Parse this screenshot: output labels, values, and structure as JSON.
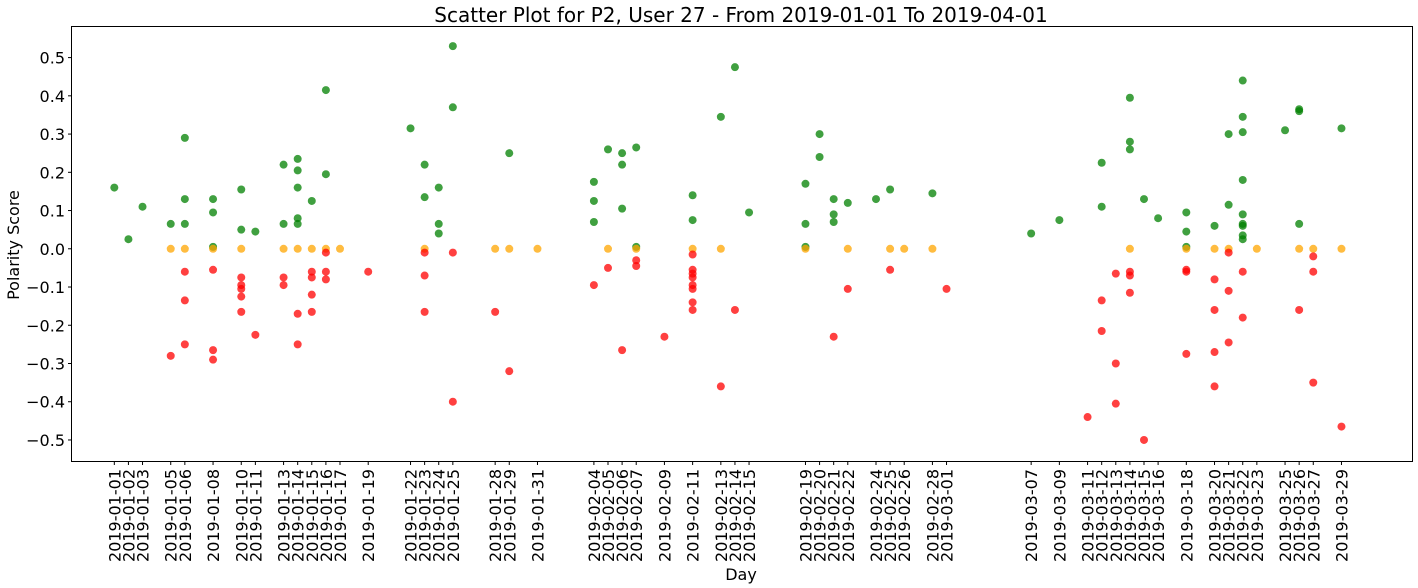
{
  "chart_data": {
    "type": "scatter",
    "title": "Scatter Plot for P2, User 27 - From 2019-01-01 To 2019-04-01",
    "xlabel": "Day",
    "ylabel": "Polarity Score",
    "ylim": [
      -0.555,
      0.58
    ],
    "yticks": [
      0.5,
      0.4,
      0.3,
      0.2,
      0.1,
      0.0,
      -0.1,
      -0.2,
      -0.3,
      -0.4,
      -0.5
    ],
    "ytick_labels": [
      "0.5",
      "0.4",
      "0.3",
      "0.2",
      "0.1",
      "0.0",
      "−0.1",
      "−0.2",
      "−0.3",
      "−0.4",
      "−0.5"
    ],
    "xlim": [
      "2018-12-29",
      "2019-04-03"
    ],
    "x_ticks": [
      "2019-01-01",
      "2019-01-02",
      "2019-01-03",
      "2019-01-05",
      "2019-01-06",
      "2019-01-08",
      "2019-01-10",
      "2019-01-11",
      "2019-01-13",
      "2019-01-14",
      "2019-01-15",
      "2019-01-16",
      "2019-01-17",
      "2019-01-19",
      "2019-01-22",
      "2019-01-23",
      "2019-01-24",
      "2019-01-25",
      "2019-01-28",
      "2019-01-29",
      "2019-01-31",
      "2019-02-04",
      "2019-02-05",
      "2019-02-06",
      "2019-02-07",
      "2019-02-09",
      "2019-02-11",
      "2019-02-13",
      "2019-02-14",
      "2019-02-15",
      "2019-02-19",
      "2019-02-20",
      "2019-02-21",
      "2019-02-22",
      "2019-02-24",
      "2019-02-25",
      "2019-02-26",
      "2019-02-28",
      "2019-03-01",
      "2019-03-07",
      "2019-03-09",
      "2019-03-11",
      "2019-03-12",
      "2019-03-13",
      "2019-03-14",
      "2019-03-15",
      "2019-03-16",
      "2019-03-18",
      "2019-03-20",
      "2019-03-21",
      "2019-03-22",
      "2019-03-23",
      "2019-03-25",
      "2019-03-26",
      "2019-03-27",
      "2019-03-29"
    ],
    "grid": false,
    "colors": {
      "positive": "#008000",
      "neutral": "#ffa500",
      "negative": "#ff0000"
    },
    "series": [
      {
        "color": "#008000",
        "points": [
          [
            "2019-01-01",
            0.16
          ],
          [
            "2019-01-02",
            0.025
          ],
          [
            "2019-01-03",
            0.11
          ],
          [
            "2019-01-05",
            0.065
          ],
          [
            "2019-01-06",
            0.29
          ],
          [
            "2019-01-06",
            0.13
          ],
          [
            "2019-01-06",
            0.065
          ],
          [
            "2019-01-08",
            0.13
          ],
          [
            "2019-01-08",
            0.095
          ],
          [
            "2019-01-08",
            0.005
          ],
          [
            "2019-01-10",
            0.155
          ],
          [
            "2019-01-10",
            0.05
          ],
          [
            "2019-01-11",
            0.045
          ],
          [
            "2019-01-13",
            0.22
          ],
          [
            "2019-01-13",
            0.065
          ],
          [
            "2019-01-14",
            0.235
          ],
          [
            "2019-01-14",
            0.205
          ],
          [
            "2019-01-14",
            0.16
          ],
          [
            "2019-01-14",
            0.08
          ],
          [
            "2019-01-14",
            0.065
          ],
          [
            "2019-01-15",
            0.125
          ],
          [
            "2019-01-16",
            0.415
          ],
          [
            "2019-01-16",
            0.195
          ],
          [
            "2019-01-22",
            0.315
          ],
          [
            "2019-01-23",
            0.22
          ],
          [
            "2019-01-23",
            0.135
          ],
          [
            "2019-01-24",
            0.16
          ],
          [
            "2019-01-24",
            0.065
          ],
          [
            "2019-01-24",
            0.04
          ],
          [
            "2019-01-25",
            0.53
          ],
          [
            "2019-01-25",
            0.37
          ],
          [
            "2019-01-29",
            0.25
          ],
          [
            "2019-02-04",
            0.175
          ],
          [
            "2019-02-04",
            0.125
          ],
          [
            "2019-02-04",
            0.07
          ],
          [
            "2019-02-05",
            0.26
          ],
          [
            "2019-02-06",
            0.25
          ],
          [
            "2019-02-06",
            0.22
          ],
          [
            "2019-02-06",
            0.105
          ],
          [
            "2019-02-07",
            0.265
          ],
          [
            "2019-02-07",
            0.005
          ],
          [
            "2019-02-11",
            0.14
          ],
          [
            "2019-02-11",
            0.075
          ],
          [
            "2019-02-13",
            0.345
          ],
          [
            "2019-02-14",
            0.475
          ],
          [
            "2019-02-15",
            0.095
          ],
          [
            "2019-02-19",
            0.17
          ],
          [
            "2019-02-19",
            0.065
          ],
          [
            "2019-02-19",
            0.005
          ],
          [
            "2019-02-20",
            0.3
          ],
          [
            "2019-02-20",
            0.24
          ],
          [
            "2019-02-21",
            0.13
          ],
          [
            "2019-02-21",
            0.09
          ],
          [
            "2019-02-21",
            0.07
          ],
          [
            "2019-02-22",
            0.12
          ],
          [
            "2019-02-24",
            0.13
          ],
          [
            "2019-02-25",
            0.155
          ],
          [
            "2019-02-28",
            0.145
          ],
          [
            "2019-03-07",
            0.04
          ],
          [
            "2019-03-09",
            0.075
          ],
          [
            "2019-03-12",
            0.225
          ],
          [
            "2019-03-12",
            0.11
          ],
          [
            "2019-03-14",
            0.395
          ],
          [
            "2019-03-14",
            0.28
          ],
          [
            "2019-03-14",
            0.26
          ],
          [
            "2019-03-15",
            0.13
          ],
          [
            "2019-03-16",
            0.08
          ],
          [
            "2019-03-18",
            0.095
          ],
          [
            "2019-03-18",
            0.045
          ],
          [
            "2019-03-18",
            0.005
          ],
          [
            "2019-03-20",
            0.06
          ],
          [
            "2019-03-21",
            0.3
          ],
          [
            "2019-03-21",
            0.115
          ],
          [
            "2019-03-22",
            0.44
          ],
          [
            "2019-03-22",
            0.345
          ],
          [
            "2019-03-22",
            0.305
          ],
          [
            "2019-03-22",
            0.18
          ],
          [
            "2019-03-22",
            0.09
          ],
          [
            "2019-03-22",
            0.065
          ],
          [
            "2019-03-22",
            0.06
          ],
          [
            "2019-03-22",
            0.035
          ],
          [
            "2019-03-22",
            0.025
          ],
          [
            "2019-03-25",
            0.31
          ],
          [
            "2019-03-26",
            0.365
          ],
          [
            "2019-03-26",
            0.36
          ],
          [
            "2019-03-26",
            0.065
          ],
          [
            "2019-03-29",
            0.315
          ]
        ]
      },
      {
        "color": "#ffa500",
        "points": [
          [
            "2019-01-05",
            0.0
          ],
          [
            "2019-01-06",
            0.0
          ],
          [
            "2019-01-08",
            0.0
          ],
          [
            "2019-01-10",
            0.0
          ],
          [
            "2019-01-13",
            0.0
          ],
          [
            "2019-01-14",
            0.0
          ],
          [
            "2019-01-15",
            0.0
          ],
          [
            "2019-01-16",
            0.0
          ],
          [
            "2019-01-17",
            0.0
          ],
          [
            "2019-01-23",
            0.0
          ],
          [
            "2019-01-28",
            0.0
          ],
          [
            "2019-01-29",
            0.0
          ],
          [
            "2019-01-31",
            0.0
          ],
          [
            "2019-02-05",
            0.0
          ],
          [
            "2019-02-07",
            0.0
          ],
          [
            "2019-02-11",
            0.0
          ],
          [
            "2019-02-13",
            0.0
          ],
          [
            "2019-02-19",
            0.0
          ],
          [
            "2019-02-22",
            0.0
          ],
          [
            "2019-02-25",
            0.0
          ],
          [
            "2019-02-26",
            0.0
          ],
          [
            "2019-02-28",
            0.0
          ],
          [
            "2019-03-14",
            0.0
          ],
          [
            "2019-03-18",
            0.0
          ],
          [
            "2019-03-20",
            0.0
          ],
          [
            "2019-03-21",
            0.0
          ],
          [
            "2019-03-23",
            0.0
          ],
          [
            "2019-03-26",
            0.0
          ],
          [
            "2019-03-27",
            0.0
          ],
          [
            "2019-03-29",
            0.0
          ]
        ]
      },
      {
        "color": "#ff0000",
        "points": [
          [
            "2019-01-05",
            -0.28
          ],
          [
            "2019-01-06",
            -0.06
          ],
          [
            "2019-01-06",
            -0.135
          ],
          [
            "2019-01-06",
            -0.25
          ],
          [
            "2019-01-08",
            -0.055
          ],
          [
            "2019-01-08",
            -0.265
          ],
          [
            "2019-01-08",
            -0.29
          ],
          [
            "2019-01-10",
            -0.075
          ],
          [
            "2019-01-10",
            -0.095
          ],
          [
            "2019-01-10",
            -0.105
          ],
          [
            "2019-01-10",
            -0.125
          ],
          [
            "2019-01-10",
            -0.165
          ],
          [
            "2019-01-11",
            -0.225
          ],
          [
            "2019-01-13",
            -0.075
          ],
          [
            "2019-01-13",
            -0.095
          ],
          [
            "2019-01-14",
            -0.17
          ],
          [
            "2019-01-14",
            -0.25
          ],
          [
            "2019-01-15",
            -0.06
          ],
          [
            "2019-01-15",
            -0.075
          ],
          [
            "2019-01-15",
            -0.12
          ],
          [
            "2019-01-15",
            -0.165
          ],
          [
            "2019-01-16",
            -0.01
          ],
          [
            "2019-01-16",
            -0.06
          ],
          [
            "2019-01-16",
            -0.08
          ],
          [
            "2019-01-19",
            -0.06
          ],
          [
            "2019-01-23",
            -0.01
          ],
          [
            "2019-01-23",
            -0.07
          ],
          [
            "2019-01-23",
            -0.165
          ],
          [
            "2019-01-25",
            -0.01
          ],
          [
            "2019-01-25",
            -0.4
          ],
          [
            "2019-01-28",
            -0.165
          ],
          [
            "2019-01-29",
            -0.32
          ],
          [
            "2019-02-04",
            -0.095
          ],
          [
            "2019-02-05",
            -0.05
          ],
          [
            "2019-02-06",
            -0.265
          ],
          [
            "2019-02-07",
            -0.03
          ],
          [
            "2019-02-07",
            -0.045
          ],
          [
            "2019-02-09",
            -0.23
          ],
          [
            "2019-02-11",
            -0.015
          ],
          [
            "2019-02-11",
            -0.055
          ],
          [
            "2019-02-11",
            -0.065
          ],
          [
            "2019-02-11",
            -0.075
          ],
          [
            "2019-02-11",
            -0.095
          ],
          [
            "2019-02-11",
            -0.105
          ],
          [
            "2019-02-11",
            -0.14
          ],
          [
            "2019-02-11",
            -0.16
          ],
          [
            "2019-02-13",
            -0.36
          ],
          [
            "2019-02-14",
            -0.16
          ],
          [
            "2019-02-21",
            -0.23
          ],
          [
            "2019-02-22",
            -0.105
          ],
          [
            "2019-02-25",
            -0.055
          ],
          [
            "2019-03-01",
            -0.105
          ],
          [
            "2019-03-11",
            -0.44
          ],
          [
            "2019-03-12",
            -0.135
          ],
          [
            "2019-03-12",
            -0.215
          ],
          [
            "2019-03-13",
            -0.065
          ],
          [
            "2019-03-13",
            -0.3
          ],
          [
            "2019-03-13",
            -0.405
          ],
          [
            "2019-03-14",
            -0.06
          ],
          [
            "2019-03-14",
            -0.07
          ],
          [
            "2019-03-14",
            -0.115
          ],
          [
            "2019-03-15",
            -0.5
          ],
          [
            "2019-03-18",
            -0.055
          ],
          [
            "2019-03-18",
            -0.06
          ],
          [
            "2019-03-18",
            -0.275
          ],
          [
            "2019-03-20",
            -0.08
          ],
          [
            "2019-03-20",
            -0.16
          ],
          [
            "2019-03-20",
            -0.27
          ],
          [
            "2019-03-20",
            -0.36
          ],
          [
            "2019-03-21",
            -0.01
          ],
          [
            "2019-03-21",
            -0.11
          ],
          [
            "2019-03-21",
            -0.245
          ],
          [
            "2019-03-22",
            -0.06
          ],
          [
            "2019-03-22",
            -0.18
          ],
          [
            "2019-03-26",
            -0.16
          ],
          [
            "2019-03-27",
            -0.02
          ],
          [
            "2019-03-27",
            -0.06
          ],
          [
            "2019-03-27",
            -0.35
          ],
          [
            "2019-03-29",
            -0.465
          ]
        ]
      }
    ]
  }
}
